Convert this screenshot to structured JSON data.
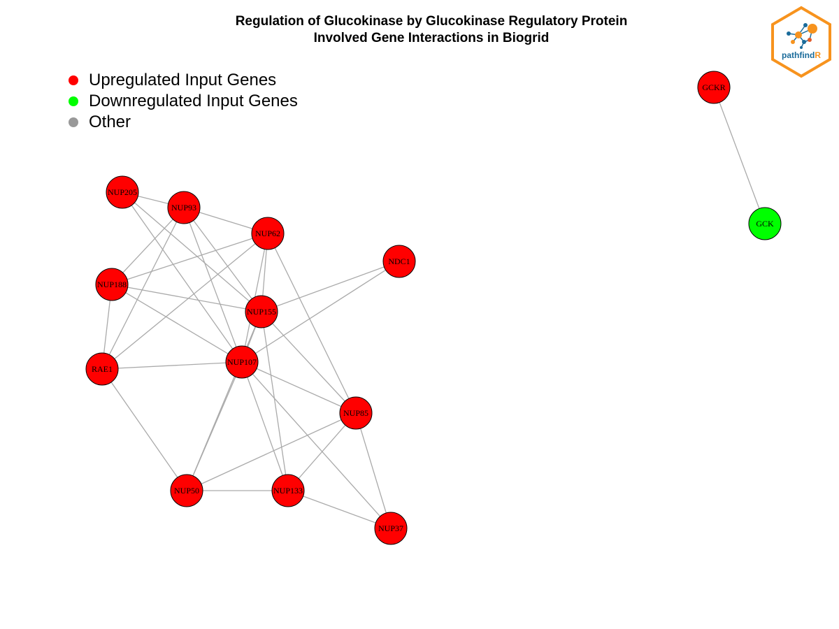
{
  "title": {
    "line1": "Regulation of Glucokinase by Glucokinase Regulatory Protein",
    "line2": "Involved Gene Interactions in Biogrid"
  },
  "legend": [
    {
      "label": "Upregulated Input Genes",
      "color": "#ff0000"
    },
    {
      "label": "Downregulated Input Genes",
      "color": "#00ff00"
    },
    {
      "label": "Other",
      "color": "#999999"
    }
  ],
  "colors": {
    "up": "#ff0000",
    "down": "#00ff00",
    "edge": "#aaaaaa",
    "node_border": "#000000"
  },
  "logo": {
    "text_a": "pathfind",
    "text_b": "R",
    "border_color": "#f7931e",
    "text_a_color": "#1a6b9a",
    "text_b_color": "#f7931e"
  },
  "nodes": [
    {
      "id": "NUP205",
      "status": "up"
    },
    {
      "id": "NUP93",
      "status": "up"
    },
    {
      "id": "NUP62",
      "status": "up"
    },
    {
      "id": "NDC1",
      "status": "up"
    },
    {
      "id": "NUP188",
      "status": "up"
    },
    {
      "id": "NUP155",
      "status": "up"
    },
    {
      "id": "RAE1",
      "status": "up"
    },
    {
      "id": "NUP107",
      "status": "up"
    },
    {
      "id": "NUP85",
      "status": "up"
    },
    {
      "id": "NUP50",
      "status": "up"
    },
    {
      "id": "NUP133",
      "status": "up"
    },
    {
      "id": "NUP37",
      "status": "up"
    },
    {
      "id": "GCKR",
      "status": "up"
    },
    {
      "id": "GCK",
      "status": "down"
    }
  ],
  "edges": [
    [
      "NUP205",
      "NUP93"
    ],
    [
      "NUP205",
      "NUP155"
    ],
    [
      "NUP205",
      "NUP107"
    ],
    [
      "NUP93",
      "NUP62"
    ],
    [
      "NUP93",
      "NUP188"
    ],
    [
      "NUP93",
      "RAE1"
    ],
    [
      "NUP93",
      "NUP155"
    ],
    [
      "NUP93",
      "NUP107"
    ],
    [
      "NUP62",
      "NUP188"
    ],
    [
      "NUP62",
      "RAE1"
    ],
    [
      "NUP62",
      "NUP155"
    ],
    [
      "NUP62",
      "NUP107"
    ],
    [
      "NUP62",
      "NUP85"
    ],
    [
      "NDC1",
      "NUP155"
    ],
    [
      "NDC1",
      "NUP107"
    ],
    [
      "NUP188",
      "RAE1"
    ],
    [
      "NUP188",
      "NUP155"
    ],
    [
      "NUP188",
      "NUP107"
    ],
    [
      "NUP155",
      "NUP107"
    ],
    [
      "NUP155",
      "NUP85"
    ],
    [
      "NUP155",
      "NUP133"
    ],
    [
      "NUP155",
      "NUP50"
    ],
    [
      "RAE1",
      "NUP107"
    ],
    [
      "RAE1",
      "NUP50"
    ],
    [
      "NUP107",
      "NUP85"
    ],
    [
      "NUP107",
      "NUP50"
    ],
    [
      "NUP107",
      "NUP133"
    ],
    [
      "NUP107",
      "NUP37"
    ],
    [
      "NUP85",
      "NUP50"
    ],
    [
      "NUP85",
      "NUP133"
    ],
    [
      "NUP85",
      "NUP37"
    ],
    [
      "NUP50",
      "NUP133"
    ],
    [
      "NUP133",
      "NUP37"
    ],
    [
      "GCKR",
      "GCK"
    ]
  ]
}
